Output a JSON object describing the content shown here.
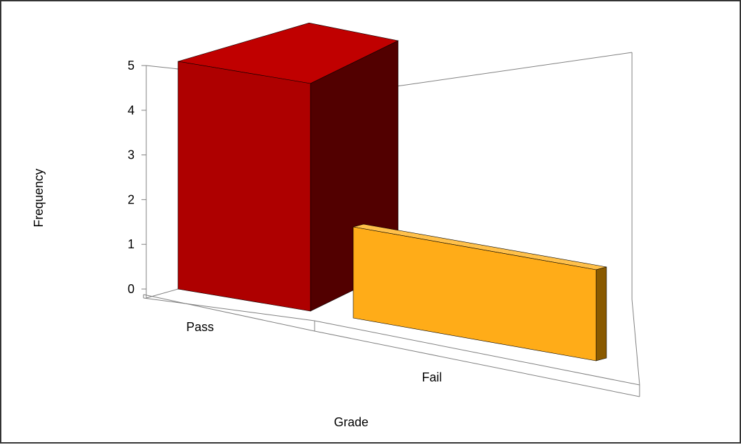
{
  "chart_data": {
    "type": "bar",
    "style": "3d",
    "title": "",
    "xlabel": "Grade",
    "ylabel": "Frequency",
    "categories": [
      "Pass",
      "Fail"
    ],
    "values": [
      5,
      2
    ],
    "ylim": [
      0,
      5
    ],
    "yticks": [
      "0",
      "1",
      "2",
      "3",
      "4",
      "5"
    ],
    "grid": false,
    "legend": "none",
    "colors": {
      "Pass": {
        "front": "#AE0000",
        "side": "#520000",
        "top": "#C00000"
      },
      "Fail": {
        "front": "#FFAC18",
        "side": "#8A5A00",
        "top": "#FFC04A"
      },
      "axes": "#000000",
      "walls": "#7f7f7f"
    }
  }
}
